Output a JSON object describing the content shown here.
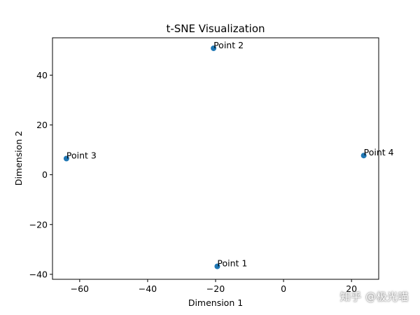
{
  "chart_data": {
    "type": "scatter",
    "title": "t-SNE Visualization",
    "xlabel": "Dimension 1",
    "ylabel": "Dimension 2",
    "xlim": [
      -68,
      28
    ],
    "ylim": [
      -42,
      55
    ],
    "xticks": [
      -60,
      -40,
      -20,
      0,
      20
    ],
    "yticks": [
      -40,
      -20,
      0,
      20,
      40
    ],
    "marker_color": "#1f77b4",
    "grid": false,
    "points": [
      {
        "label": "Point 1",
        "x": -19.5,
        "y": -36.8
      },
      {
        "label": "Point 2",
        "x": -20.6,
        "y": 50.8
      },
      {
        "label": "Point 3",
        "x": -63.9,
        "y": 6.5
      },
      {
        "label": "Point 4",
        "x": 23.6,
        "y": 7.7
      }
    ]
  },
  "watermark": "知乎 @极光喵"
}
